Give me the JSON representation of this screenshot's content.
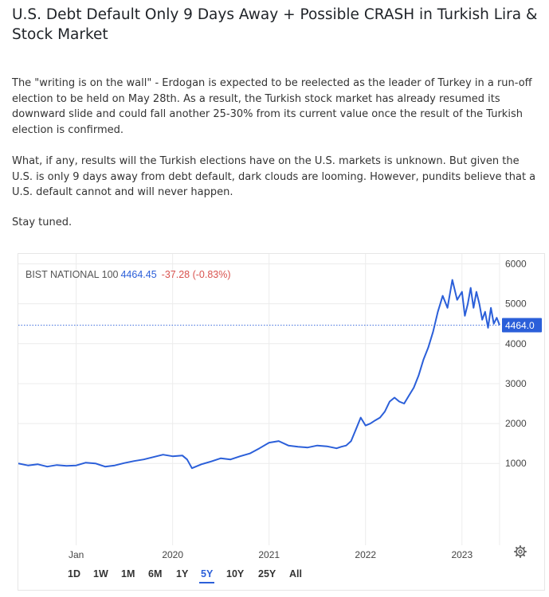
{
  "article": {
    "title": "U.S. Debt Default Only 9 Days Away + Possible CRASH in Turkish Lira & Stock Market",
    "paragraphs": [
      "The \"writing is on the wall\" - Erdogan is expected to be reelected as the leader of Turkey in a run-off election to be held on May 28th. As a result, the Turkish stock market has already resumed its downward slide and could fall another 25-30% from its current value once the result of the Turkish election is confirmed.",
      "What, if any, results will the Turkish elections have on the U.S. markets is unknown. But given the U.S. is only 9 days away from debt default, dark clouds are looming. However, pundits believe that a U.S. default cannot and will never happen.",
      "Stay tuned."
    ]
  },
  "chart_header": {
    "name": "BIST NATIONAL 100",
    "price": "4464.45",
    "change": "-37.28 (-0.83%)"
  },
  "ranges": [
    "1D",
    "1W",
    "1M",
    "6M",
    "1Y",
    "5Y",
    "10Y",
    "25Y",
    "All"
  ],
  "active_range": "5Y",
  "colors": {
    "line": "#2b5fd9",
    "negative": "#d9534f",
    "grid": "#ececec",
    "axis_text": "#444"
  },
  "icons": {
    "settings": "gear-icon"
  },
  "chart_data": {
    "type": "line",
    "series_name": "BIST NATIONAL 100",
    "last_value_label": "4464.0",
    "x_ticks": [
      "Jan",
      "2020",
      "2021",
      "2022",
      "2023"
    ],
    "x_tick_values": [
      2019.0,
      2020.0,
      2021.0,
      2022.0,
      2023.0
    ],
    "y_ticks": [
      "1000",
      "2000",
      "3000",
      "4000",
      "5000",
      "6000"
    ],
    "y_tick_values": [
      1000,
      2000,
      3000,
      4000,
      5000,
      6000
    ],
    "xlim": [
      2018.4,
      2023.39
    ],
    "ylim": [
      -1050,
      6250
    ],
    "x": [
      2018.4,
      2018.5,
      2018.6,
      2018.7,
      2018.8,
      2018.9,
      2019.0,
      2019.1,
      2019.2,
      2019.3,
      2019.4,
      2019.5,
      2019.6,
      2019.7,
      2019.8,
      2019.9,
      2020.0,
      2020.1,
      2020.15,
      2020.2,
      2020.3,
      2020.4,
      2020.5,
      2020.6,
      2020.7,
      2020.8,
      2020.9,
      2021.0,
      2021.1,
      2021.2,
      2021.3,
      2021.4,
      2021.5,
      2021.6,
      2021.7,
      2021.75,
      2021.8,
      2021.85,
      2021.9,
      2021.95,
      2022.0,
      2022.05,
      2022.1,
      2022.15,
      2022.2,
      2022.25,
      2022.3,
      2022.35,
      2022.4,
      2022.45,
      2022.5,
      2022.55,
      2022.6,
      2022.65,
      2022.7,
      2022.75,
      2022.8,
      2022.85,
      2022.9,
      2022.95,
      2023.0,
      2023.03,
      2023.06,
      2023.09,
      2023.12,
      2023.15,
      2023.18,
      2023.21,
      2023.24,
      2023.27,
      2023.3,
      2023.33,
      2023.36,
      2023.39
    ],
    "y": [
      1000,
      950,
      980,
      920,
      960,
      940,
      950,
      1020,
      1000,
      920,
      950,
      1010,
      1060,
      1100,
      1160,
      1220,
      1180,
      1200,
      1100,
      880,
      980,
      1050,
      1130,
      1100,
      1180,
      1250,
      1380,
      1520,
      1560,
      1450,
      1420,
      1400,
      1450,
      1430,
      1380,
      1420,
      1450,
      1560,
      1850,
      2150,
      1950,
      2000,
      2080,
      2150,
      2300,
      2550,
      2650,
      2550,
      2500,
      2700,
      2900,
      3200,
      3600,
      3900,
      4300,
      4800,
      5200,
      4900,
      5600,
      5100,
      5300,
      4700,
      5000,
      5400,
      4900,
      5300,
      5000,
      4600,
      4800,
      4400,
      4900,
      4500,
      4650,
      4464
    ]
  }
}
